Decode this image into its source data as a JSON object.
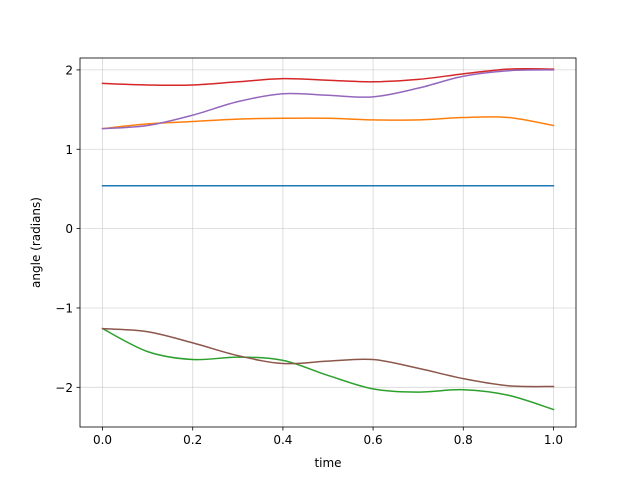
{
  "chart_data": {
    "type": "line",
    "title": "",
    "xlabel": "time",
    "ylabel": "angle (radians)",
    "xlim": [
      -0.05,
      1.05
    ],
    "ylim": [
      -2.5,
      2.15
    ],
    "xticks": [
      0.0,
      0.2,
      0.4,
      0.6,
      0.8,
      1.0
    ],
    "xtick_labels": [
      "0.0",
      "0.2",
      "0.4",
      "0.6",
      "0.8",
      "1.0"
    ],
    "yticks": [
      -2,
      -1,
      0,
      1,
      2
    ],
    "ytick_labels": [
      "−2",
      "−1",
      "0",
      "1",
      "2"
    ],
    "grid": true,
    "legend": "none",
    "x": [
      0.0,
      0.1,
      0.2,
      0.3,
      0.4,
      0.5,
      0.6,
      0.7,
      0.8,
      0.9,
      1.0
    ],
    "series": [
      {
        "color": "#1f77b4",
        "values": [
          0.54,
          0.54,
          0.54,
          0.54,
          0.54,
          0.54,
          0.54,
          0.54,
          0.54,
          0.54,
          0.54
        ]
      },
      {
        "color": "#ff7f0e",
        "values": [
          1.26,
          1.32,
          1.35,
          1.38,
          1.39,
          1.39,
          1.37,
          1.37,
          1.4,
          1.4,
          1.3
        ]
      },
      {
        "color": "#2ca02c",
        "values": [
          -1.26,
          -1.55,
          -1.65,
          -1.62,
          -1.66,
          -1.85,
          -2.02,
          -2.06,
          -2.03,
          -2.1,
          -2.28
        ]
      },
      {
        "color": "#d62728",
        "values": [
          1.83,
          1.81,
          1.81,
          1.85,
          1.89,
          1.87,
          1.85,
          1.88,
          1.95,
          2.01,
          2.01
        ]
      },
      {
        "color": "#9467bd",
        "values": [
          1.26,
          1.3,
          1.43,
          1.6,
          1.7,
          1.68,
          1.66,
          1.77,
          1.92,
          1.99,
          2.0
        ]
      },
      {
        "color": "#8c564b",
        "values": [
          -1.26,
          -1.3,
          -1.44,
          -1.6,
          -1.7,
          -1.67,
          -1.65,
          -1.76,
          -1.89,
          -1.98,
          -1.99
        ]
      }
    ]
  }
}
